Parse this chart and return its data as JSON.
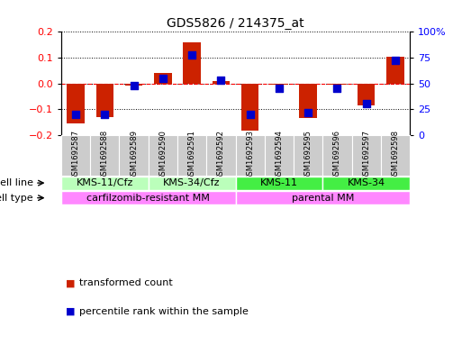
{
  "title": "GDS5826 / 214375_at",
  "samples": [
    "GSM1692587",
    "GSM1692588",
    "GSM1692589",
    "GSM1692590",
    "GSM1692591",
    "GSM1692592",
    "GSM1692593",
    "GSM1692594",
    "GSM1692595",
    "GSM1692596",
    "GSM1692597",
    "GSM1692598"
  ],
  "transformed_count": [
    -0.155,
    -0.13,
    -0.008,
    0.04,
    0.16,
    0.008,
    -0.185,
    -0.005,
    -0.135,
    -0.005,
    -0.085,
    0.105
  ],
  "percentile_rank": [
    20,
    20,
    48,
    55,
    78,
    53,
    20,
    45,
    22,
    45,
    30,
    72
  ],
  "ylim_left": [
    -0.2,
    0.2
  ],
  "ylim_right": [
    0,
    100
  ],
  "yticks_left": [
    -0.2,
    -0.1,
    0.0,
    0.1,
    0.2
  ],
  "yticks_right": [
    0,
    25,
    50,
    75,
    100
  ],
  "ytick_labels_right": [
    "0",
    "25",
    "50",
    "75",
    "100%"
  ],
  "bar_color": "#cc2200",
  "dot_color": "#0000cc",
  "cell_line_groups": [
    {
      "label": "KMS-11/Cfz",
      "start": 0,
      "end": 2,
      "color": "#bbffbb"
    },
    {
      "label": "KMS-34/Cfz",
      "start": 3,
      "end": 5,
      "color": "#bbffbb"
    },
    {
      "label": "KMS-11",
      "start": 6,
      "end": 8,
      "color": "#44ee44"
    },
    {
      "label": "KMS-34",
      "start": 9,
      "end": 11,
      "color": "#44ee44"
    }
  ],
  "cell_type_groups": [
    {
      "label": "carfilzomib-resistant MM",
      "start": 0,
      "end": 5,
      "color": "#ff88ff"
    },
    {
      "label": "parental MM",
      "start": 6,
      "end": 11,
      "color": "#ff88ff"
    }
  ],
  "legend_items": [
    {
      "label": "transformed count",
      "color": "#cc2200"
    },
    {
      "label": "percentile rank within the sample",
      "color": "#0000cc"
    }
  ],
  "sample_bg_color": "#cccccc",
  "cell_line_row_label": "cell line",
  "cell_type_row_label": "cell type"
}
